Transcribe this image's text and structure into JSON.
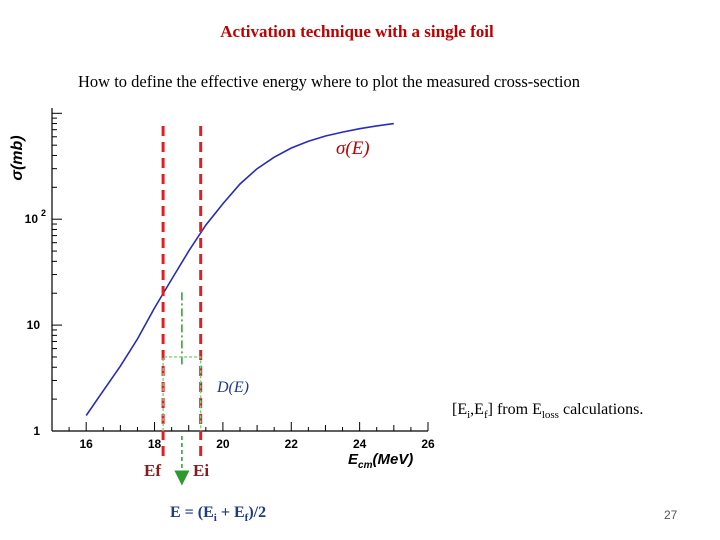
{
  "slide": {
    "title": "Activation technique with a single foil",
    "subtitle": "How to define the effective energy where to plot the measured cross-section",
    "range_note": {
      "bracket_open": "[",
      "ei_sym": "E",
      "ei_sub": "i",
      "comma": ",",
      "ef_sym": "E",
      "ef_sub": "f",
      "mid": "] from ",
      "loss_sym": "E",
      "loss_sub": "loss",
      "tail": " calculations."
    },
    "ef_label": "Ef",
    "ei_label": "Ei",
    "formula": {
      "text1": "E = (E",
      "sub1": "i",
      "text2": " + E",
      "sub2": "f",
      "text3": ")/2"
    },
    "page_number": "27"
  },
  "chart_data": {
    "type": "line",
    "xlabel": "E cm(MeV)",
    "xlabel_main": "E",
    "xlabel_sub": "cm",
    "xlabel_unit": "(MeV)",
    "ylabel": "σ(mb)",
    "x_ticks": [
      "16",
      "18",
      "20",
      "22",
      "24",
      "26"
    ],
    "x_tick_values": [
      16,
      18,
      20,
      22,
      24,
      26
    ],
    "y_ticks": [
      {
        "value": 1,
        "base": "1",
        "exp": ""
      },
      {
        "value": 10,
        "base": "10",
        "exp": ""
      },
      {
        "value": 100,
        "base": "10",
        "exp": "2"
      }
    ],
    "xlim": [
      15,
      26
    ],
    "ylim_log10": [
      0,
      3.05
    ],
    "y_scale": "log",
    "curve_label": "σ(E)",
    "deriv_label": "D(E)",
    "series": [
      {
        "name": "σ(E)",
        "color": "#2a2ab8",
        "x": [
          16.0,
          16.5,
          17.0,
          17.5,
          18.0,
          18.5,
          19.0,
          19.5,
          20.0,
          20.5,
          21.0,
          21.5,
          22.0,
          22.5,
          23.0,
          23.5,
          24.0,
          24.5,
          25.0
        ],
        "y": [
          1.4,
          2.4,
          4.1,
          7.4,
          14.5,
          27.0,
          50.0,
          88.0,
          140.0,
          215.0,
          300.0,
          385.0,
          470.0,
          545.0,
          610.0,
          665.0,
          715.0,
          760.0,
          800.0
        ]
      }
    ],
    "markers": {
      "ef_x": 18.25,
      "ei_x": 19.35,
      "mid_x": 18.8,
      "ef_color": "#e02020",
      "ei_color": "#e02020",
      "mid_color": "#2e9a2e",
      "deriv_color": "#7fcf7f",
      "deriv_level": 5.0
    },
    "grid": false,
    "legend": "none"
  }
}
